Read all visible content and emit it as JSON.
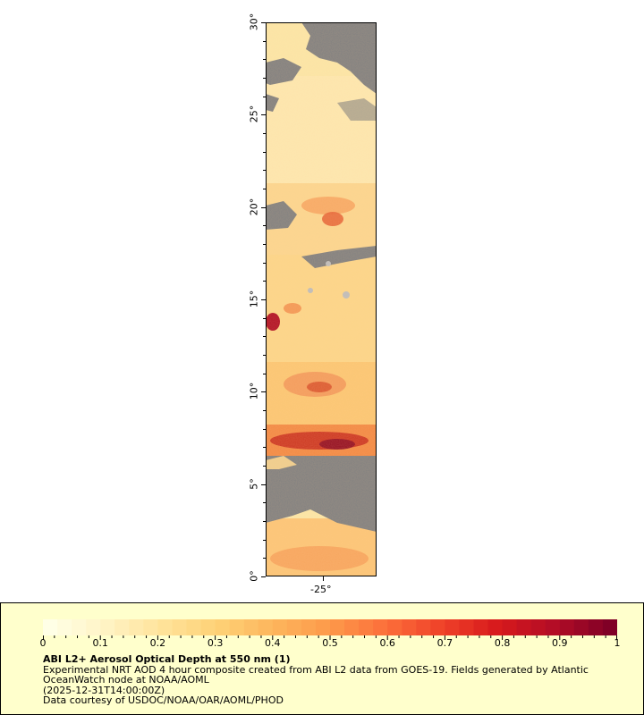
{
  "map": {
    "lat_labels": [
      "0°",
      "5°",
      "10°",
      "15°",
      "20°",
      "25°",
      "30°"
    ],
    "lat_values": [
      0,
      5,
      10,
      15,
      20,
      25,
      30
    ],
    "lon_labels": [
      "-25°"
    ],
    "land_color": "#808080",
    "missing_color": "#bdbdbd",
    "lat_range": [
      0,
      30
    ]
  },
  "colorbar": {
    "min": 0,
    "max": 1,
    "tick_labels": [
      "0",
      "0.1",
      "0.2",
      "0.3",
      "0.4",
      "0.5",
      "0.6",
      "0.7",
      "0.8",
      "0.9",
      "1"
    ],
    "colors": [
      "#ffffe6",
      "#fff3c4",
      "#ffe39a",
      "#fed176",
      "#fdb55c",
      "#fd9a4a",
      "#fc6f3a",
      "#ef4129",
      "#d7191c",
      "#b30d26",
      "#800026"
    ]
  },
  "legend": {
    "title": "ABI L2+ Aerosol Optical Depth at 550 nm (1)",
    "line1": "Experimental NRT AOD 4 hour composite created from ABI L2 data from GOES-19. Fields generated by Atlantic",
    "line2": "OceanWatch node at NOAA/AOML",
    "line3": "(2025-12-31T14:00:00Z)",
    "line4": "Data courtesy of USDOC/NOAA/OAR/AOML/PHOD"
  }
}
